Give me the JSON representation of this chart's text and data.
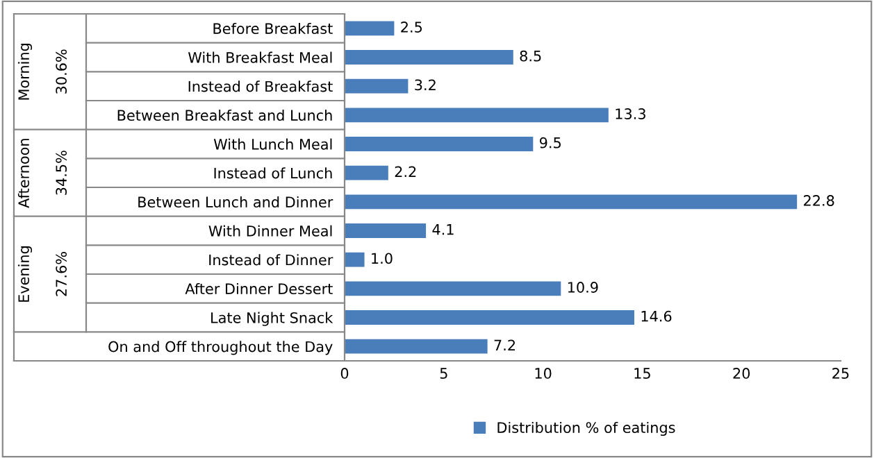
{
  "chart_data": {
    "type": "bar",
    "orientation": "horizontal",
    "categories": [
      "Before Breakfast",
      "With Breakfast Meal",
      "Instead of Breakfast",
      "Between Breakfast and Lunch",
      "With Lunch Meal",
      "Instead of Lunch",
      "Between Lunch and Dinner",
      "With Dinner Meal",
      "Instead of Dinner",
      "After Dinner Dessert",
      "Late Night Snack",
      "On and Off throughout the Day"
    ],
    "series": [
      {
        "name": "Distribution % of eatings",
        "color": "#4a7ebb",
        "values": [
          2.5,
          8.5,
          3.2,
          13.3,
          9.5,
          2.2,
          22.8,
          4.1,
          1.0,
          10.9,
          14.6,
          7.2
        ],
        "value_labels": [
          "2.5",
          "8.5",
          "3.2",
          "13.3",
          "9.5",
          "2.2",
          "22.8",
          "4.1",
          "1.0",
          "10.9",
          "14.6",
          "7.2"
        ]
      }
    ],
    "xlim": [
      0,
      25
    ],
    "xticks": [
      0,
      5,
      10,
      15,
      20,
      25
    ],
    "grid": false,
    "legend": "bottom",
    "annotations": [
      "Morning",
      "30.6%",
      "Afternoon",
      "34.5%",
      "Evening",
      "27.6%"
    ]
  }
}
